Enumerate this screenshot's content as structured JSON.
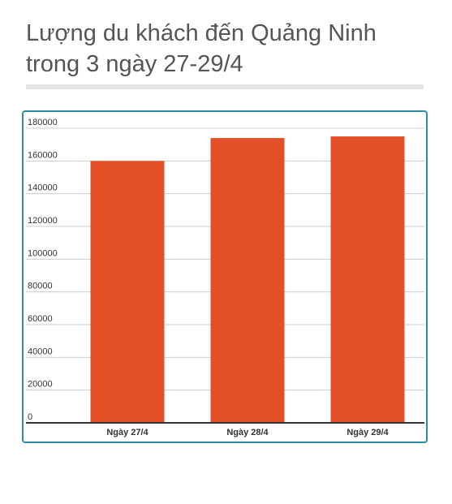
{
  "title": "Lượng du khách đến Quảng Ninh trong 3 ngày 27-29/4",
  "chart_data": {
    "type": "bar",
    "title": "Lượng du khách đến Quảng Ninh trong 3 ngày 27-29/4",
    "xlabel": "",
    "ylabel": "",
    "categories": [
      "Ngày 27/4",
      "Ngày 28/4",
      "Ngày 29/4"
    ],
    "values": [
      160000,
      174000,
      175000
    ],
    "ylim": [
      0,
      180000
    ],
    "yticks": [
      0,
      20000,
      40000,
      60000,
      80000,
      100000,
      120000,
      140000,
      160000,
      180000
    ],
    "grid": true,
    "legend": "none",
    "bar_color": "#e34f26",
    "axis_color": "#333333",
    "grid_color": "#cccccc",
    "frame_color": "#2a8ea6"
  }
}
